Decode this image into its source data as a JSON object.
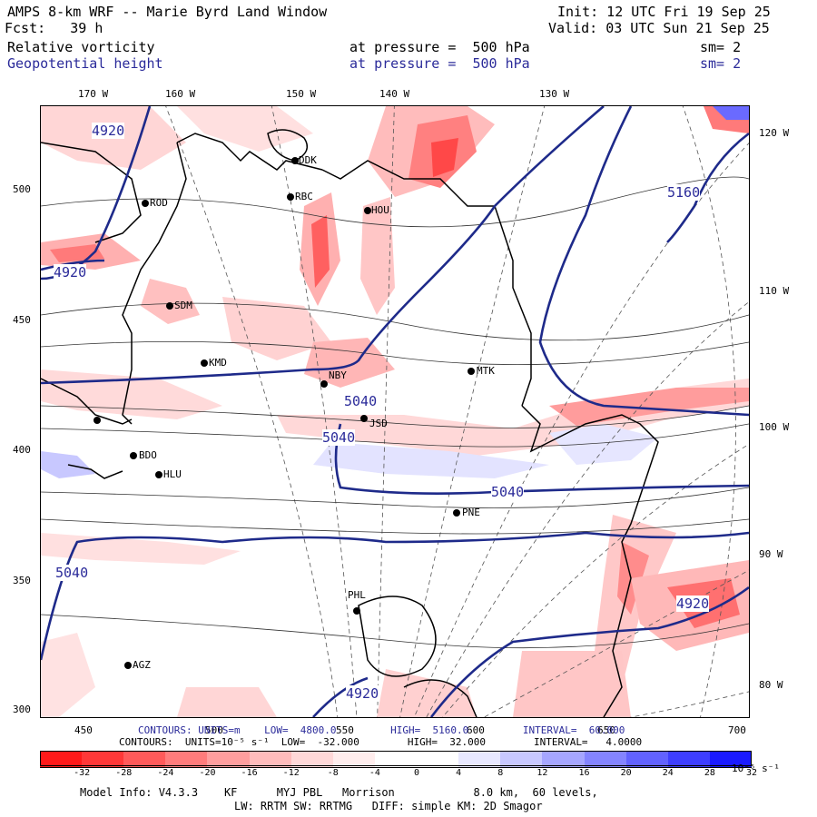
{
  "header": {
    "title": "AMPS 8-km WRF -- Marie Byrd Land Window",
    "init": "Init: 12 UTC Fri 19 Sep 25",
    "forecast": "Fcst:   39 h",
    "valid": "Valid: 03 UTC Sun 21 Sep 25",
    "field1": {
      "name": "Relative vorticity",
      "level": "at pressure =  500 hPa",
      "smooth": "sm= 2"
    },
    "field2": {
      "name": "Geopotential height",
      "level": "at pressure =  500 hPa",
      "smooth": "sm= 2"
    }
  },
  "axes": {
    "top_lon": [
      "170 W",
      "160 W",
      "150 W",
      "140 W",
      "130 W"
    ],
    "right_lon": [
      "120 W",
      "110 W",
      "100 W",
      "90 W",
      "80 W"
    ],
    "left_y": [
      "500",
      "450",
      "400",
      "350",
      "300"
    ],
    "bottom_x": [
      "450",
      "500",
      "550",
      "600",
      "650",
      "700"
    ]
  },
  "stations": [
    "DDK",
    "RBC",
    "HOU",
    "ROD",
    "SDM",
    "KMD",
    "NBY",
    "MTK",
    "JSD",
    "BDO",
    "HLU",
    "PNE",
    "PHL",
    "AGZ"
  ],
  "height_contour_labels": [
    "4920",
    "4920",
    "5160",
    "5040",
    "5040",
    "5040",
    "4920",
    "4920",
    "5040"
  ],
  "contour_info": {
    "height": "CONTOURS: UNITS=m    LOW=  4800.0         HIGH=  5160.0         INTERVAL=  60.000",
    "vorticity": "CONTOURS:  UNITS=10⁻⁵ s⁻¹  LOW=  -32.000        HIGH=  32.000        INTERVAL=   4.0000"
  },
  "colorbar": {
    "colors": [
      "#ff1a1a",
      "#ff3838",
      "#ff5a5a",
      "#ff7c7c",
      "#ff9e9e",
      "#ffbcbc",
      "#ffd8d8",
      "#ffeded",
      "#ffffff",
      "#ffffff",
      "#e8e8ff",
      "#c8c8ff",
      "#a6a6ff",
      "#8484ff",
      "#6262ff",
      "#3e3eff",
      "#1a1aff"
    ],
    "ticks": [
      "-32",
      "-28",
      "-24",
      "-20",
      "-16",
      "-12",
      "-8",
      "-4",
      "0",
      "4",
      "8",
      "12",
      "16",
      "20",
      "24",
      "28",
      "32"
    ],
    "units": "10⁻⁵ s⁻¹"
  },
  "footer": {
    "line1": "Model Info: V4.3.3    KF      MYJ PBL   Morrison            8.0 km,  60 levels,",
    "line2": "LW: RRTM SW: RRTMG   DIFF: simple KM: 2D Smagor"
  }
}
